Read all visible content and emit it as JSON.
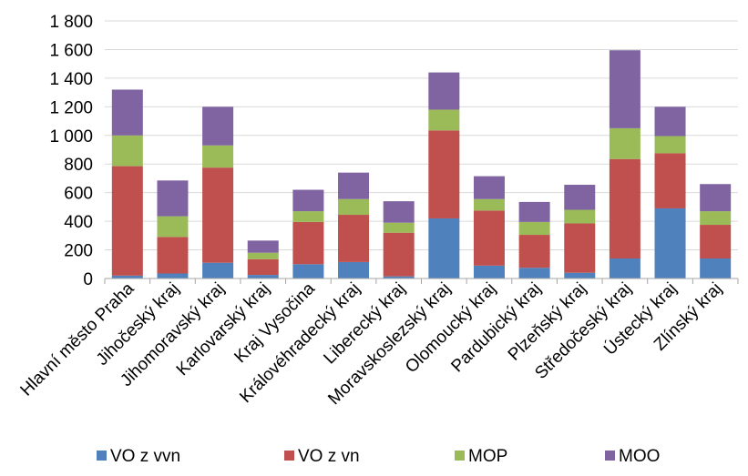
{
  "chart_data": {
    "type": "bar",
    "stacked": true,
    "categories": [
      "Hlavní město Praha",
      "Jihočeský kraj",
      "Jihomoravský kraj",
      "Karlovarský kraj",
      "Kraj Vysočina",
      "Královéhradecký kraj",
      "Liberecký kraj",
      "Moravskoslezský kraj",
      "Olomoucký kraj",
      "Pardubický kraj",
      "Plzeňský kraj",
      "Středočeský kraj",
      "Ústecký kraj",
      "Zlínský kraj"
    ],
    "series": [
      {
        "name": "VO z vvn",
        "color": "#4F81BD",
        "values": [
          20,
          35,
          110,
          25,
          100,
          115,
          15,
          420,
          90,
          75,
          40,
          140,
          490,
          140
        ]
      },
      {
        "name": "VO z vn",
        "color": "#C0504D",
        "values": [
          765,
          255,
          665,
          110,
          295,
          330,
          305,
          615,
          385,
          230,
          345,
          695,
          385,
          235
        ]
      },
      {
        "name": "MOP",
        "color": "#9BBB59",
        "values": [
          215,
          145,
          155,
          45,
          75,
          110,
          70,
          145,
          80,
          90,
          95,
          215,
          120,
          95
        ]
      },
      {
        "name": "MOO",
        "color": "#8064A2",
        "values": [
          320,
          250,
          270,
          85,
          150,
          185,
          150,
          260,
          160,
          140,
          175,
          545,
          205,
          190
        ]
      }
    ],
    "y_ticks": [
      "0",
      "200",
      "400",
      "600",
      "800",
      "1 000",
      "1 200",
      "1 400",
      "1 600",
      "1 800"
    ],
    "ylim": [
      0,
      1800
    ],
    "grid": "horizontal",
    "legend_position": "bottom"
  }
}
